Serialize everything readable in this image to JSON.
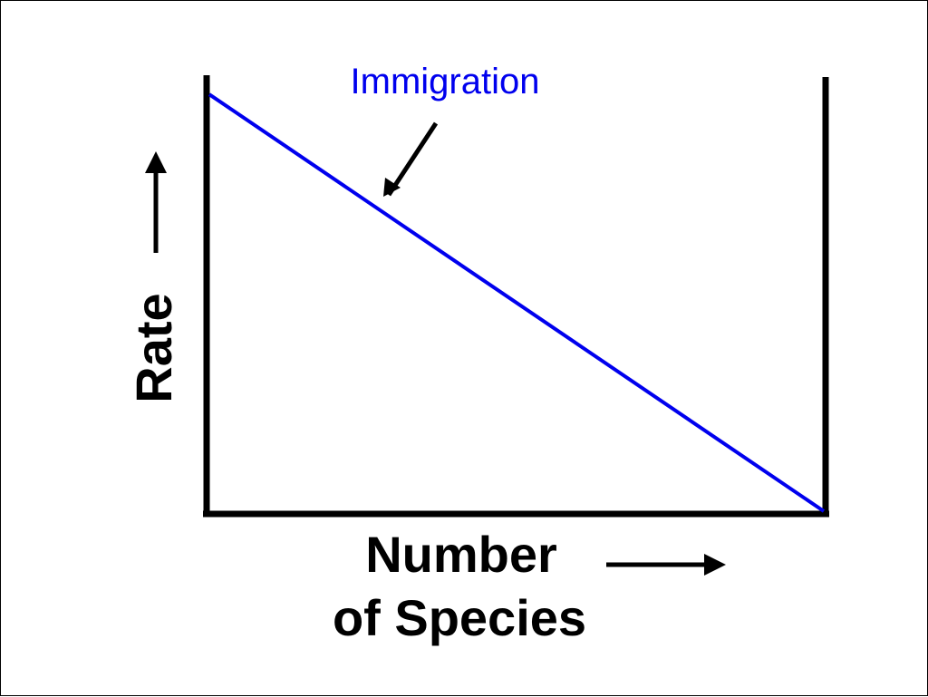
{
  "chart_data": {
    "type": "line",
    "title": "",
    "xlabel_line1": "Number",
    "xlabel_line2": "of Species",
    "ylabel": "Rate",
    "xlim": [
      0,
      1
    ],
    "ylim": [
      0,
      1
    ],
    "grid": false,
    "series": [
      {
        "name": "Immigration",
        "color": "#0000ee",
        "x": [
          0,
          1
        ],
        "y": [
          0.96,
          0
        ]
      }
    ]
  },
  "annotations": {
    "immigration_label": "Immigration",
    "immigration_color": "#0000ee",
    "arrow_icon": "arrow-down-left-icon"
  },
  "axis_colors": {
    "frame": "#000000"
  }
}
